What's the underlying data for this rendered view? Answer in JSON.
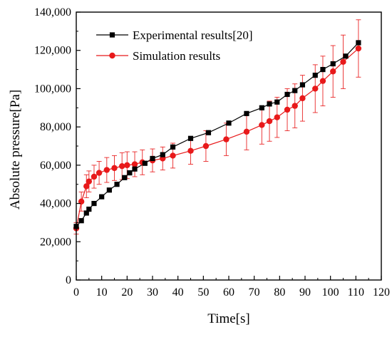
{
  "chart_data": {
    "type": "scatter",
    "title": "",
    "xlabel": "Time[s]",
    "ylabel": "Absolute pressure[Pa]",
    "xlim": [
      0,
      120
    ],
    "ylim": [
      0,
      140000
    ],
    "x_ticks": [
      0,
      10,
      20,
      30,
      40,
      50,
      60,
      70,
      80,
      90,
      100,
      110,
      120
    ],
    "y_ticks": [
      0,
      20000,
      40000,
      60000,
      80000,
      100000,
      120000,
      140000
    ],
    "y_tick_labels": [
      "0",
      "20,000",
      "40,000",
      "60,000",
      "80,000",
      "100,000",
      "120,000",
      "140,000"
    ],
    "grid": false,
    "legend_position": "top-left",
    "series": [
      {
        "name": "Experimental results[20]",
        "color": "#000000",
        "marker": "square",
        "x": [
          0,
          2,
          4,
          5,
          7,
          10,
          13,
          16,
          19,
          21,
          23,
          27,
          30,
          34,
          38,
          45,
          52,
          60,
          67,
          73,
          76,
          79,
          83,
          86,
          89,
          94,
          97,
          101,
          106,
          111
        ],
        "y": [
          28000,
          31000,
          35000,
          37000,
          40000,
          43500,
          47000,
          50000,
          53500,
          56000,
          58000,
          61000,
          63500,
          65500,
          69500,
          74000,
          77000,
          82000,
          87000,
          90000,
          92000,
          93000,
          97000,
          99000,
          102000,
          107000,
          110000,
          113000,
          117000,
          124000
        ]
      },
      {
        "name": "Simulation results",
        "color": "#e8191a",
        "marker": "circle",
        "x": [
          0,
          2,
          4,
          5,
          7,
          9,
          12,
          15,
          18,
          20,
          23,
          26,
          30,
          34,
          38,
          45,
          51,
          59,
          67,
          73,
          76,
          79,
          83,
          86,
          89,
          94,
          97,
          101,
          105,
          111
        ],
        "y": [
          27000,
          41000,
          49000,
          51500,
          54000,
          56000,
          57500,
          58500,
          59500,
          60000,
          60500,
          61500,
          62500,
          63500,
          65000,
          67500,
          70000,
          73500,
          77500,
          81000,
          83000,
          85000,
          89000,
          91000,
          95000,
          100000,
          104000,
          109000,
          114000,
          121000
        ],
        "error": [
          3000,
          5000,
          6000,
          5500,
          6000,
          6000,
          6500,
          6500,
          7000,
          7000,
          6500,
          6500,
          6000,
          6000,
          6500,
          7000,
          8000,
          8500,
          9500,
          10000,
          10500,
          10500,
          11000,
          11500,
          12000,
          12500,
          13000,
          13500,
          14000,
          15000
        ]
      }
    ]
  }
}
